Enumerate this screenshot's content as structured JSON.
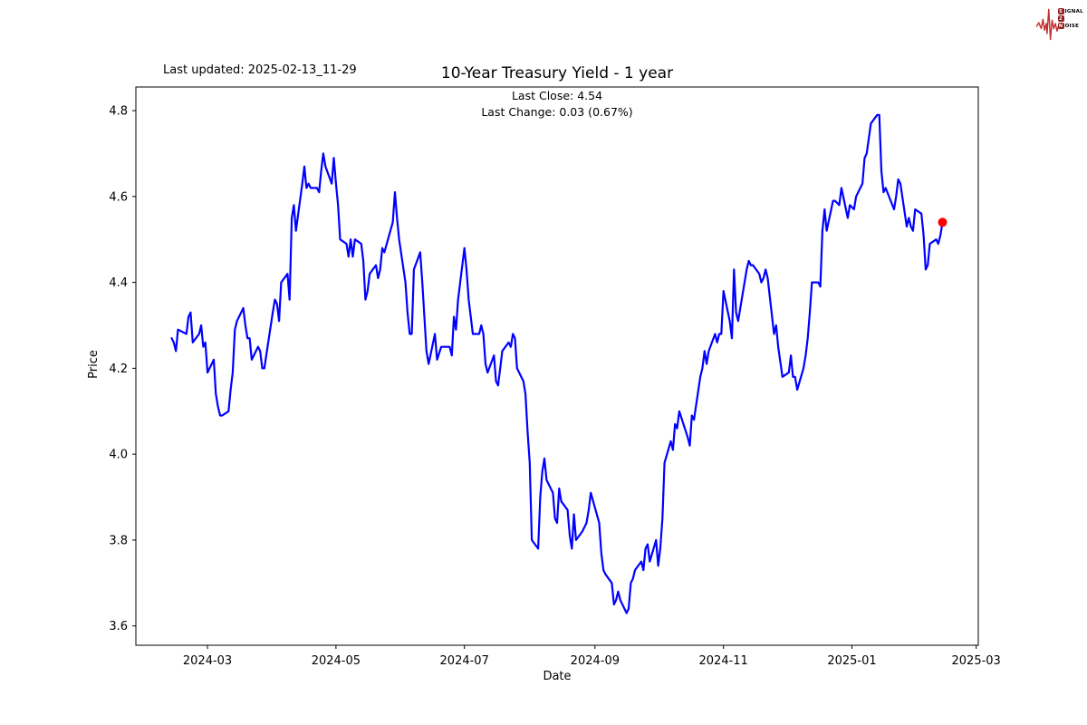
{
  "header": {
    "last_updated": "Last updated: 2025-02-13_11-29",
    "subtitle_line1": "Last Close: 4.54",
    "subtitle_line2": "Last Change: 0.03 (0.67%)"
  },
  "logo": {
    "rows": [
      {
        "badge": "S",
        "rest": "IGNAL"
      },
      {
        "badge": "2",
        "rest": ""
      },
      {
        "badge": "N",
        "rest": "OISE"
      }
    ],
    "wave_color": "#c62f2f",
    "badge_color": "#8e1f1f"
  },
  "chart_data": {
    "type": "line",
    "title": "10-Year Treasury Yield - 1 year",
    "xlabel": "Date",
    "ylabel": "Price",
    "line_color": "#0000ff",
    "background": "#ffffff",
    "grid": false,
    "legend": false,
    "x_range": [
      "2024-01-27",
      "2025-03-02"
    ],
    "y_range": [
      3.555,
      4.855
    ],
    "x_ticks": [
      {
        "date": "2024-03-01",
        "label": "2024-03"
      },
      {
        "date": "2024-05-01",
        "label": "2024-05"
      },
      {
        "date": "2024-07-01",
        "label": "2024-07"
      },
      {
        "date": "2024-09-01",
        "label": "2024-09"
      },
      {
        "date": "2024-11-01",
        "label": "2024-11"
      },
      {
        "date": "2025-01-01",
        "label": "2025-01"
      },
      {
        "date": "2025-03-01",
        "label": "2025-03"
      }
    ],
    "y_ticks": [
      3.6,
      3.8,
      4.0,
      4.2,
      4.4,
      4.6,
      4.8
    ],
    "marker": {
      "date": "2025-02-13",
      "value": 4.54,
      "color": "#ff0000"
    },
    "series": [
      {
        "name": "10-Year Treasury Yield",
        "points": [
          [
            "2024-02-13",
            4.27
          ],
          [
            "2024-02-14",
            4.26
          ],
          [
            "2024-02-15",
            4.24
          ],
          [
            "2024-02-16",
            4.29
          ],
          [
            "2024-02-20",
            4.28
          ],
          [
            "2024-02-21",
            4.32
          ],
          [
            "2024-02-22",
            4.33
          ],
          [
            "2024-02-23",
            4.26
          ],
          [
            "2024-02-26",
            4.28
          ],
          [
            "2024-02-27",
            4.3
          ],
          [
            "2024-02-28",
            4.25
          ],
          [
            "2024-02-29",
            4.26
          ],
          [
            "2024-03-01",
            4.19
          ],
          [
            "2024-03-04",
            4.22
          ],
          [
            "2024-03-05",
            4.14
          ],
          [
            "2024-03-06",
            4.11
          ],
          [
            "2024-03-07",
            4.09
          ],
          [
            "2024-03-08",
            4.09
          ],
          [
            "2024-03-11",
            4.1
          ],
          [
            "2024-03-12",
            4.15
          ],
          [
            "2024-03-13",
            4.19
          ],
          [
            "2024-03-14",
            4.29
          ],
          [
            "2024-03-15",
            4.31
          ],
          [
            "2024-03-18",
            4.34
          ],
          [
            "2024-03-19",
            4.3
          ],
          [
            "2024-03-20",
            4.27
          ],
          [
            "2024-03-21",
            4.27
          ],
          [
            "2024-03-22",
            4.22
          ],
          [
            "2024-03-25",
            4.25
          ],
          [
            "2024-03-26",
            4.24
          ],
          [
            "2024-03-27",
            4.2
          ],
          [
            "2024-03-28",
            4.2
          ],
          [
            "2024-04-01",
            4.33
          ],
          [
            "2024-04-02",
            4.36
          ],
          [
            "2024-04-03",
            4.35
          ],
          [
            "2024-04-04",
            4.31
          ],
          [
            "2024-04-05",
            4.4
          ],
          [
            "2024-04-08",
            4.42
          ],
          [
            "2024-04-09",
            4.36
          ],
          [
            "2024-04-10",
            4.55
          ],
          [
            "2024-04-11",
            4.58
          ],
          [
            "2024-04-12",
            4.52
          ],
          [
            "2024-04-15",
            4.63
          ],
          [
            "2024-04-16",
            4.67
          ],
          [
            "2024-04-17",
            4.62
          ],
          [
            "2024-04-18",
            4.63
          ],
          [
            "2024-04-19",
            4.62
          ],
          [
            "2024-04-22",
            4.62
          ],
          [
            "2024-04-23",
            4.61
          ],
          [
            "2024-04-24",
            4.66
          ],
          [
            "2024-04-25",
            4.7
          ],
          [
            "2024-04-26",
            4.67
          ],
          [
            "2024-04-29",
            4.63
          ],
          [
            "2024-04-30",
            4.69
          ],
          [
            "2024-05-01",
            4.63
          ],
          [
            "2024-05-02",
            4.58
          ],
          [
            "2024-05-03",
            4.5
          ],
          [
            "2024-05-06",
            4.49
          ],
          [
            "2024-05-07",
            4.46
          ],
          [
            "2024-05-08",
            4.5
          ],
          [
            "2024-05-09",
            4.46
          ],
          [
            "2024-05-10",
            4.5
          ],
          [
            "2024-05-13",
            4.49
          ],
          [
            "2024-05-14",
            4.45
          ],
          [
            "2024-05-15",
            4.36
          ],
          [
            "2024-05-16",
            4.38
          ],
          [
            "2024-05-17",
            4.42
          ],
          [
            "2024-05-20",
            4.44
          ],
          [
            "2024-05-21",
            4.41
          ],
          [
            "2024-05-22",
            4.43
          ],
          [
            "2024-05-23",
            4.48
          ],
          [
            "2024-05-24",
            4.47
          ],
          [
            "2024-05-28",
            4.54
          ],
          [
            "2024-05-29",
            4.61
          ],
          [
            "2024-05-30",
            4.55
          ],
          [
            "2024-05-31",
            4.5
          ],
          [
            "2024-06-03",
            4.4
          ],
          [
            "2024-06-04",
            4.33
          ],
          [
            "2024-06-05",
            4.28
          ],
          [
            "2024-06-06",
            4.28
          ],
          [
            "2024-06-07",
            4.43
          ],
          [
            "2024-06-10",
            4.47
          ],
          [
            "2024-06-11",
            4.4
          ],
          [
            "2024-06-12",
            4.32
          ],
          [
            "2024-06-13",
            4.24
          ],
          [
            "2024-06-14",
            4.21
          ],
          [
            "2024-06-17",
            4.28
          ],
          [
            "2024-06-18",
            4.22
          ],
          [
            "2024-06-20",
            4.25
          ],
          [
            "2024-06-21",
            4.25
          ],
          [
            "2024-06-24",
            4.25
          ],
          [
            "2024-06-25",
            4.23
          ],
          [
            "2024-06-26",
            4.32
          ],
          [
            "2024-06-27",
            4.29
          ],
          [
            "2024-06-28",
            4.36
          ],
          [
            "2024-07-01",
            4.48
          ],
          [
            "2024-07-02",
            4.43
          ],
          [
            "2024-07-03",
            4.36
          ],
          [
            "2024-07-05",
            4.28
          ],
          [
            "2024-07-08",
            4.28
          ],
          [
            "2024-07-09",
            4.3
          ],
          [
            "2024-07-10",
            4.28
          ],
          [
            "2024-07-11",
            4.21
          ],
          [
            "2024-07-12",
            4.19
          ],
          [
            "2024-07-15",
            4.23
          ],
          [
            "2024-07-16",
            4.17
          ],
          [
            "2024-07-17",
            4.16
          ],
          [
            "2024-07-18",
            4.2
          ],
          [
            "2024-07-19",
            4.24
          ],
          [
            "2024-07-22",
            4.26
          ],
          [
            "2024-07-23",
            4.25
          ],
          [
            "2024-07-24",
            4.28
          ],
          [
            "2024-07-25",
            4.27
          ],
          [
            "2024-07-26",
            4.2
          ],
          [
            "2024-07-29",
            4.17
          ],
          [
            "2024-07-30",
            4.14
          ],
          [
            "2024-07-31",
            4.05
          ],
          [
            "2024-08-01",
            3.98
          ],
          [
            "2024-08-02",
            3.8
          ],
          [
            "2024-08-05",
            3.78
          ],
          [
            "2024-08-06",
            3.9
          ],
          [
            "2024-08-07",
            3.96
          ],
          [
            "2024-08-08",
            3.99
          ],
          [
            "2024-08-09",
            3.94
          ],
          [
            "2024-08-12",
            3.91
          ],
          [
            "2024-08-13",
            3.85
          ],
          [
            "2024-08-14",
            3.84
          ],
          [
            "2024-08-15",
            3.92
          ],
          [
            "2024-08-16",
            3.89
          ],
          [
            "2024-08-19",
            3.87
          ],
          [
            "2024-08-20",
            3.81
          ],
          [
            "2024-08-21",
            3.78
          ],
          [
            "2024-08-22",
            3.86
          ],
          [
            "2024-08-23",
            3.8
          ],
          [
            "2024-08-26",
            3.82
          ],
          [
            "2024-08-27",
            3.83
          ],
          [
            "2024-08-28",
            3.84
          ],
          [
            "2024-08-29",
            3.87
          ],
          [
            "2024-08-30",
            3.91
          ],
          [
            "2024-09-03",
            3.84
          ],
          [
            "2024-09-04",
            3.77
          ],
          [
            "2024-09-05",
            3.73
          ],
          [
            "2024-09-06",
            3.72
          ],
          [
            "2024-09-09",
            3.7
          ],
          [
            "2024-09-10",
            3.65
          ],
          [
            "2024-09-11",
            3.66
          ],
          [
            "2024-09-12",
            3.68
          ],
          [
            "2024-09-13",
            3.66
          ],
          [
            "2024-09-16",
            3.63
          ],
          [
            "2024-09-17",
            3.64
          ],
          [
            "2024-09-18",
            3.7
          ],
          [
            "2024-09-19",
            3.71
          ],
          [
            "2024-09-20",
            3.73
          ],
          [
            "2024-09-23",
            3.75
          ],
          [
            "2024-09-24",
            3.73
          ],
          [
            "2024-09-25",
            3.78
          ],
          [
            "2024-09-26",
            3.79
          ],
          [
            "2024-09-27",
            3.75
          ],
          [
            "2024-09-30",
            3.8
          ],
          [
            "2024-10-01",
            3.74
          ],
          [
            "2024-10-02",
            3.78
          ],
          [
            "2024-10-03",
            3.85
          ],
          [
            "2024-10-04",
            3.98
          ],
          [
            "2024-10-07",
            4.03
          ],
          [
            "2024-10-08",
            4.01
          ],
          [
            "2024-10-09",
            4.07
          ],
          [
            "2024-10-10",
            4.06
          ],
          [
            "2024-10-11",
            4.1
          ],
          [
            "2024-10-15",
            4.04
          ],
          [
            "2024-10-16",
            4.02
          ],
          [
            "2024-10-17",
            4.09
          ],
          [
            "2024-10-18",
            4.08
          ],
          [
            "2024-10-21",
            4.18
          ],
          [
            "2024-10-22",
            4.2
          ],
          [
            "2024-10-23",
            4.24
          ],
          [
            "2024-10-24",
            4.21
          ],
          [
            "2024-10-25",
            4.24
          ],
          [
            "2024-10-28",
            4.28
          ],
          [
            "2024-10-29",
            4.26
          ],
          [
            "2024-10-30",
            4.28
          ],
          [
            "2024-10-31",
            4.28
          ],
          [
            "2024-11-01",
            4.38
          ],
          [
            "2024-11-04",
            4.31
          ],
          [
            "2024-11-05",
            4.27
          ],
          [
            "2024-11-06",
            4.43
          ],
          [
            "2024-11-07",
            4.33
          ],
          [
            "2024-11-08",
            4.31
          ],
          [
            "2024-11-12",
            4.43
          ],
          [
            "2024-11-13",
            4.45
          ],
          [
            "2024-11-14",
            4.44
          ],
          [
            "2024-11-15",
            4.44
          ],
          [
            "2024-11-18",
            4.42
          ],
          [
            "2024-11-19",
            4.4
          ],
          [
            "2024-11-20",
            4.41
          ],
          [
            "2024-11-21",
            4.43
          ],
          [
            "2024-11-22",
            4.41
          ],
          [
            "2024-11-25",
            4.28
          ],
          [
            "2024-11-26",
            4.3
          ],
          [
            "2024-11-27",
            4.25
          ],
          [
            "2024-11-29",
            4.18
          ],
          [
            "2024-12-02",
            4.19
          ],
          [
            "2024-12-03",
            4.23
          ],
          [
            "2024-12-04",
            4.18
          ],
          [
            "2024-12-05",
            4.18
          ],
          [
            "2024-12-06",
            4.15
          ],
          [
            "2024-12-09",
            4.2
          ],
          [
            "2024-12-10",
            4.23
          ],
          [
            "2024-12-11",
            4.27
          ],
          [
            "2024-12-12",
            4.33
          ],
          [
            "2024-12-13",
            4.4
          ],
          [
            "2024-12-16",
            4.4
          ],
          [
            "2024-12-17",
            4.39
          ],
          [
            "2024-12-18",
            4.52
          ],
          [
            "2024-12-19",
            4.57
          ],
          [
            "2024-12-20",
            4.52
          ],
          [
            "2024-12-23",
            4.59
          ],
          [
            "2024-12-24",
            4.59
          ],
          [
            "2024-12-26",
            4.58
          ],
          [
            "2024-12-27",
            4.62
          ],
          [
            "2024-12-30",
            4.55
          ],
          [
            "2024-12-31",
            4.58
          ],
          [
            "2025-01-02",
            4.57
          ],
          [
            "2025-01-03",
            4.6
          ],
          [
            "2025-01-06",
            4.63
          ],
          [
            "2025-01-07",
            4.69
          ],
          [
            "2025-01-08",
            4.7
          ],
          [
            "2025-01-10",
            4.77
          ],
          [
            "2025-01-13",
            4.79
          ],
          [
            "2025-01-14",
            4.79
          ],
          [
            "2025-01-15",
            4.66
          ],
          [
            "2025-01-16",
            4.61
          ],
          [
            "2025-01-17",
            4.62
          ],
          [
            "2025-01-21",
            4.57
          ],
          [
            "2025-01-22",
            4.6
          ],
          [
            "2025-01-23",
            4.64
          ],
          [
            "2025-01-24",
            4.63
          ],
          [
            "2025-01-27",
            4.53
          ],
          [
            "2025-01-28",
            4.55
          ],
          [
            "2025-01-29",
            4.53
          ],
          [
            "2025-01-30",
            4.52
          ],
          [
            "2025-01-31",
            4.57
          ],
          [
            "2025-02-03",
            4.56
          ],
          [
            "2025-02-04",
            4.51
          ],
          [
            "2025-02-05",
            4.43
          ],
          [
            "2025-02-06",
            4.44
          ],
          [
            "2025-02-07",
            4.49
          ],
          [
            "2025-02-10",
            4.5
          ],
          [
            "2025-02-11",
            4.49
          ],
          [
            "2025-02-12",
            4.51
          ],
          [
            "2025-02-13",
            4.54
          ]
        ]
      }
    ]
  }
}
